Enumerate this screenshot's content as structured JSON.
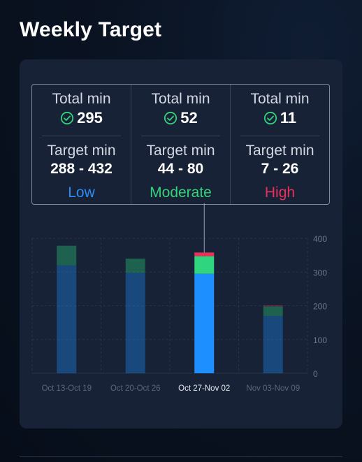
{
  "page": {
    "title": "Weekly Target"
  },
  "summary": {
    "columns": [
      {
        "total_label": "Total min",
        "total_value": "295",
        "target_label": "Target min",
        "target_range": "288 - 432",
        "intensity": "Low",
        "intensity_color": "#2b8cf2"
      },
      {
        "total_label": "Total min",
        "total_value": "52",
        "target_label": "Target min",
        "target_range": "44 - 80",
        "intensity": "Moderate",
        "intensity_color": "#35d27a"
      },
      {
        "total_label": "Total min",
        "total_value": "11",
        "target_label": "Target min",
        "target_range": "7 - 26",
        "intensity": "High",
        "intensity_color": "#e8305a"
      }
    ],
    "check_icon": "check-circle-icon",
    "check_color": "#35d27a"
  },
  "chart_data": {
    "type": "bar",
    "stacked": true,
    "categories": [
      "Oct 13-Oct 19",
      "Oct 20-Oct 26",
      "Oct 27-Nov 02",
      "Nov 03-Nov 09"
    ],
    "selected_index": 2,
    "series": [
      {
        "values": [
          320,
          298,
          295,
          170
        ],
        "color": "#1e8fff"
      },
      {
        "values": [
          58,
          42,
          52,
          28
        ],
        "color": "#2fd67f"
      },
      {
        "values": [
          0,
          0,
          11,
          4
        ],
        "color": "#ec2f56"
      }
    ],
    "ylim": [
      0,
      400
    ],
    "yticks": [
      0,
      100,
      200,
      300,
      400
    ],
    "ytick_labels": [
      "0",
      "100",
      "200",
      "300",
      "400"
    ],
    "grid": true,
    "y_axis_side": "right",
    "legend": "none"
  }
}
